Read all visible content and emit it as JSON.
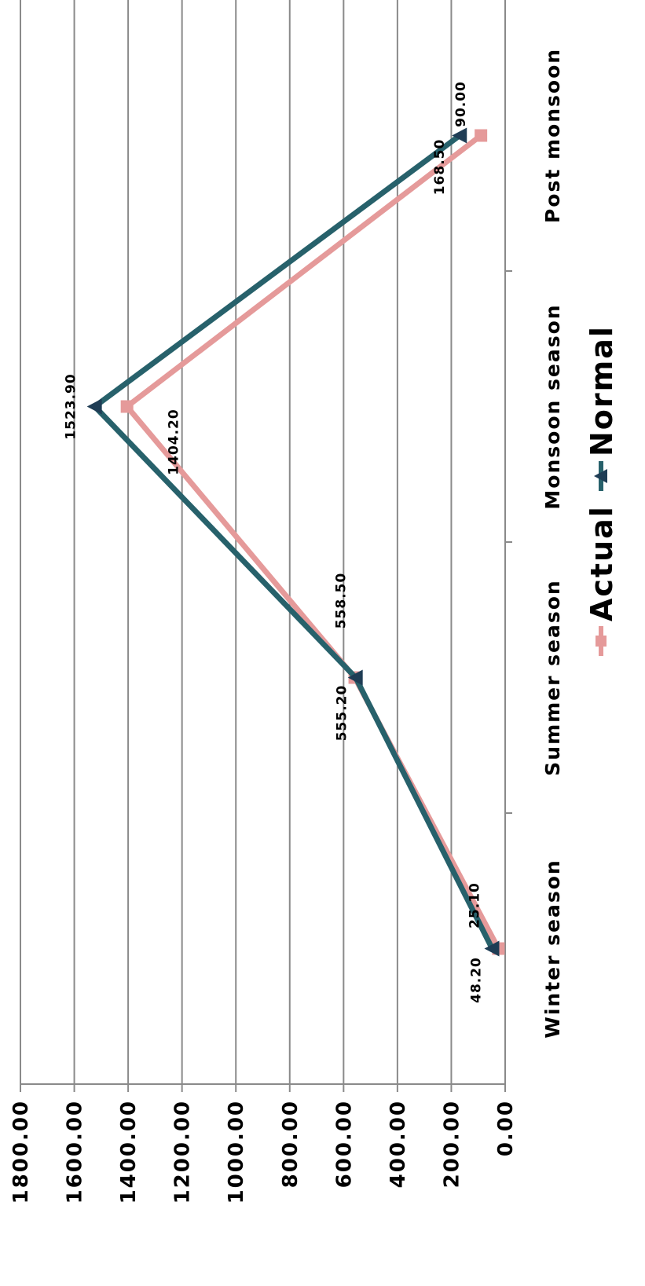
{
  "chart_data": {
    "type": "line",
    "categories": [
      "Winter season",
      "Summer season",
      "Monsoon season",
      "Post monsoon"
    ],
    "series": [
      {
        "name": "Actual",
        "values": [
          25.1,
          558.5,
          1404.2,
          90.0
        ],
        "color": "#e59a9a",
        "marker": "square",
        "labels": [
          "25.10",
          "558.50",
          "1404.20",
          "90.00"
        ]
      },
      {
        "name": "Normal",
        "values": [
          48.2,
          555.2,
          1523.9,
          168.5
        ],
        "color": "#27616b",
        "marker": "triangle",
        "labels": [
          "48.20",
          "555.20",
          "1523.90",
          "168.50"
        ]
      }
    ],
    "yticks": [
      "0.00",
      "200.00",
      "400.00",
      "600.00",
      "800.00",
      "1000.00",
      "1200.00",
      "1400.00",
      "1600.00",
      "1800.00"
    ],
    "ylim": [
      0,
      1800
    ],
    "grid": true,
    "legend_position": "bottom",
    "orientation": "rotated 90° counter-clockwise"
  }
}
